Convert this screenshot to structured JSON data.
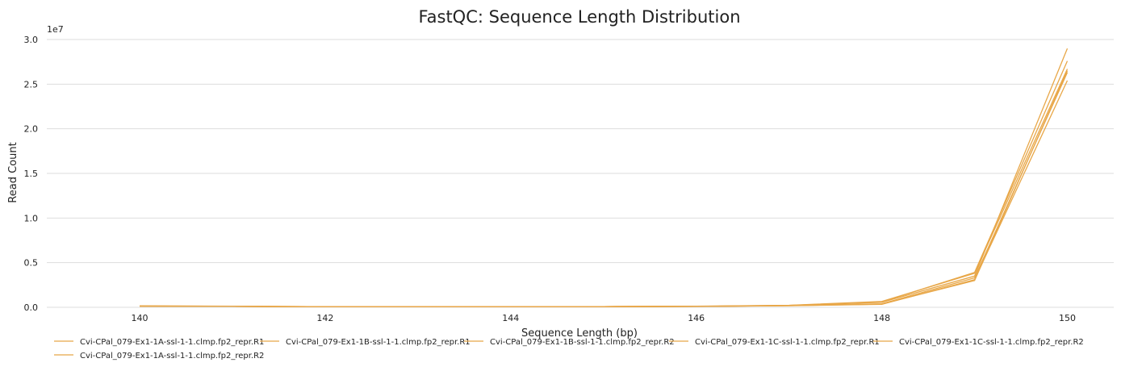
{
  "chart_data": {
    "type": "line",
    "title": "FastQC: Sequence Length Distribution",
    "xlabel": "Sequence Length (bp)",
    "ylabel": "Read Count",
    "y_scale_label": "1e7",
    "xlim": [
      139,
      150.5
    ],
    "ylim": [
      0,
      30000000
    ],
    "x_ticks": [
      140,
      142,
      144,
      146,
      148,
      150
    ],
    "x_tick_labels": [
      "140",
      "142",
      "144",
      "146",
      "148",
      "150"
    ],
    "y_ticks": [
      0,
      5000000,
      10000000,
      15000000,
      20000000,
      25000000,
      30000000
    ],
    "y_tick_labels": [
      "0.0",
      "0.5",
      "1.0",
      "1.5",
      "2.0",
      "2.5",
      "3.0"
    ],
    "grid": true,
    "legend_position": "bottom",
    "x": [
      140,
      141,
      142,
      143,
      144,
      145,
      146,
      147,
      148,
      149,
      150
    ],
    "series": [
      {
        "name": "Cvi-CPal_079-Ex1-1A-ssl-1-1.clmp.fp2_repr.R1",
        "color": "#e8a748",
        "values": [
          150000,
          110000,
          60000,
          60000,
          70000,
          80000,
          110000,
          220000,
          550000,
          3500000,
          29000000
        ]
      },
      {
        "name": "Cvi-CPal_079-Ex1-1B-ssl-1-1.clmp.fp2_repr.R1",
        "color": "#e8a748",
        "values": [
          140000,
          100000,
          60000,
          60000,
          70000,
          80000,
          100000,
          200000,
          600000,
          3900000,
          27600000
        ]
      },
      {
        "name": "Cvi-CPal_079-Ex1-1B-ssl-1-1.clmp.fp2_repr.R2",
        "color": "#e8a748",
        "values": [
          130000,
          100000,
          60000,
          60000,
          70000,
          75000,
          90000,
          180000,
          350000,
          3000000,
          26500000
        ]
      },
      {
        "name": "Cvi-CPal_079-Ex1-1C-ssl-1-1.clmp.fp2_repr.R1",
        "color": "#e8a748",
        "values": [
          150000,
          120000,
          70000,
          60000,
          70000,
          85000,
          120000,
          230000,
          650000,
          3800000,
          26700000
        ]
      },
      {
        "name": "Cvi-CPal_079-Ex1-1C-ssl-1-1.clmp.fp2_repr.R2",
        "color": "#e8a748",
        "values": [
          120000,
          100000,
          55000,
          55000,
          65000,
          75000,
          95000,
          170000,
          330000,
          3100000,
          25400000
        ]
      },
      {
        "name": "Cvi-CPal_079-Ex1-1A-ssl-1-1.clmp.fp2_repr.R2",
        "color": "#e8a748",
        "values": [
          135000,
          105000,
          60000,
          60000,
          70000,
          78000,
          100000,
          190000,
          400000,
          3300000,
          26300000
        ]
      }
    ]
  }
}
